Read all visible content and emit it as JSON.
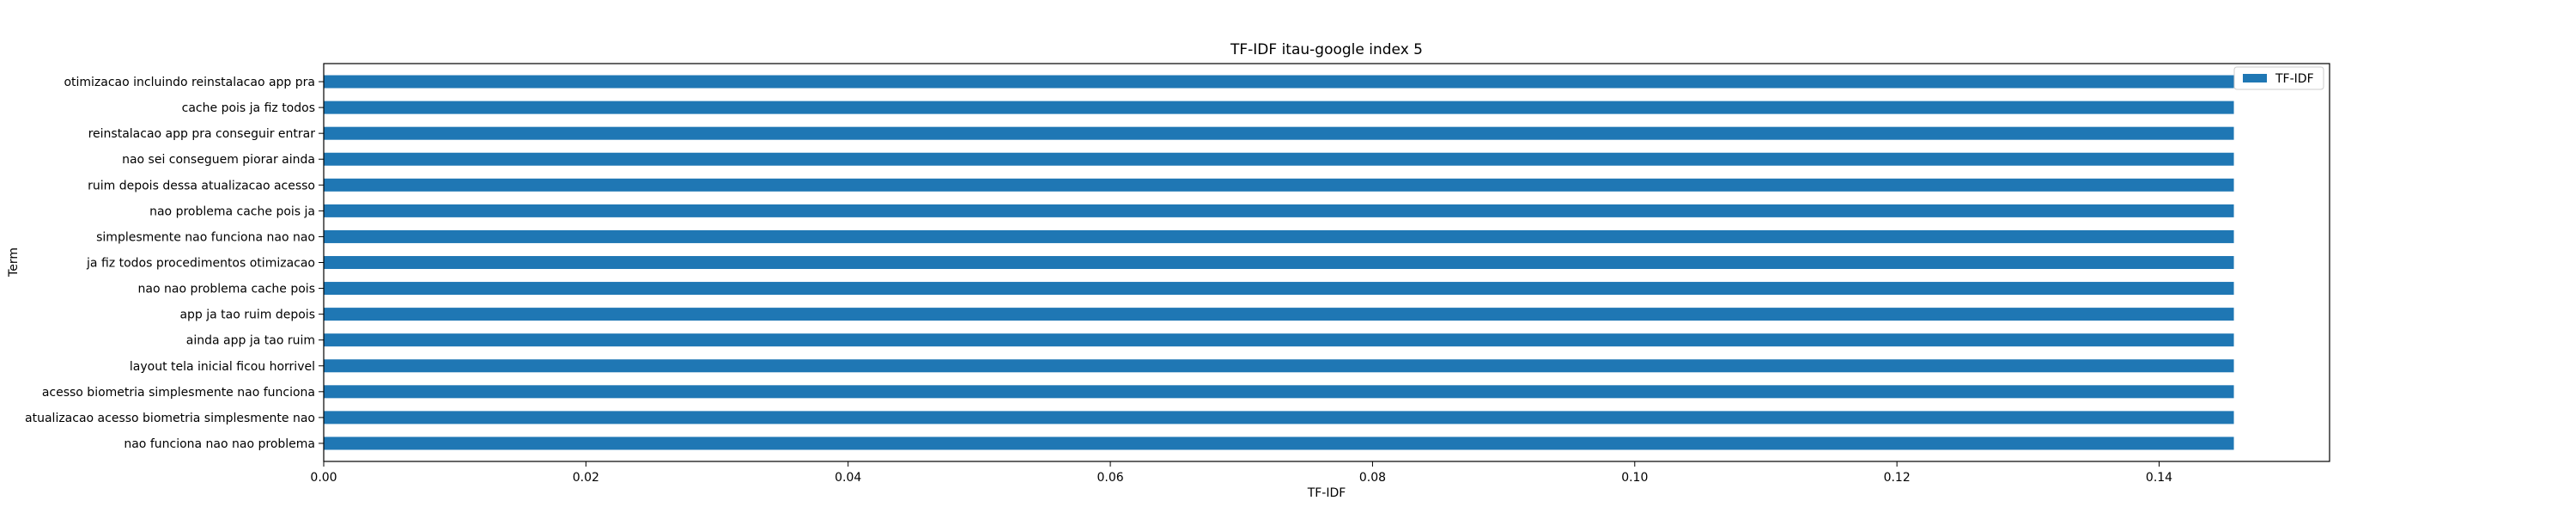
{
  "chart_data": {
    "type": "bar",
    "orientation": "horizontal",
    "title": "TF-IDF itau-google index 5",
    "xlabel": "TF-IDF",
    "ylabel": "Term",
    "xlim": [
      0,
      0.153
    ],
    "xticks": [
      0.0,
      0.02,
      0.04,
      0.06,
      0.08,
      0.1,
      0.12,
      0.14
    ],
    "xtick_labels": [
      "0.00",
      "0.02",
      "0.04",
      "0.06",
      "0.08",
      "0.10",
      "0.12",
      "0.14"
    ],
    "categories": [
      "otimizacao incluindo reinstalacao app pra",
      "cache pois ja fiz todos",
      "reinstalacao app pra conseguir entrar",
      "nao sei conseguem piorar ainda",
      "ruim depois dessa atualizacao acesso",
      "nao problema cache pois ja",
      "simplesmente nao funciona nao nao",
      "ja fiz todos procedimentos otimizacao",
      "nao nao problema cache pois",
      "app ja tao ruim depois",
      "ainda app ja tao ruim",
      "layout tela inicial ficou horrivel",
      "acesso biometria simplesmente nao funciona",
      "atualizacao acesso biometria simplesmente nao",
      "nao funciona nao nao problema"
    ],
    "series": [
      {
        "name": "TF-IDF",
        "color": "#1f77b4",
        "values": [
          0.1457,
          0.1457,
          0.1457,
          0.1457,
          0.1457,
          0.1457,
          0.1457,
          0.1457,
          0.1457,
          0.1457,
          0.1457,
          0.1457,
          0.1457,
          0.1457,
          0.1457
        ]
      }
    ],
    "legend": {
      "position": "upper-right",
      "entries": [
        "TF-IDF"
      ]
    },
    "grid": false
  }
}
